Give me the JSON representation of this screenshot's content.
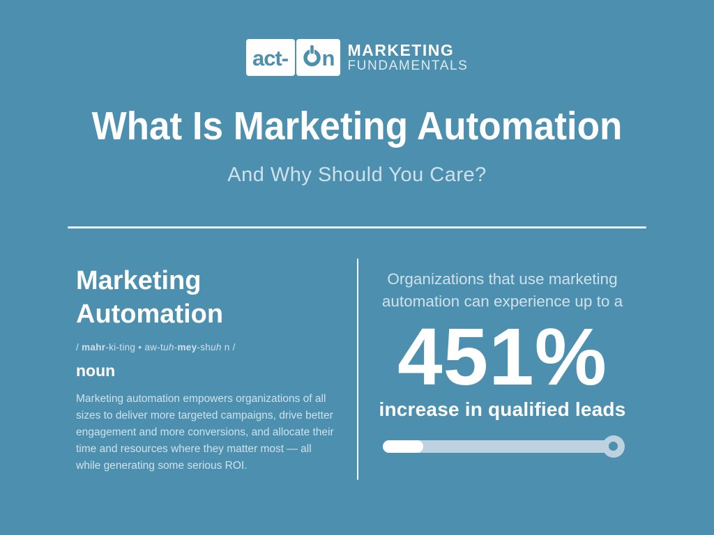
{
  "colors": {
    "background": "#4C8FAE",
    "white": "#FFFFFF",
    "pale_text": "#CFE2EC",
    "slider_track": "#BDD2DE"
  },
  "header": {
    "logo_text_left": "act-",
    "logo_text_right": "n",
    "power_icon": "power-icon",
    "brand_top": "MARKETING",
    "brand_bottom": "FUNDAMENTALS"
  },
  "hero": {
    "title": "What Is Marketing Automation",
    "subtitle": "And Why Should You Care?"
  },
  "definition": {
    "term_line1": "Marketing",
    "term_line2": "Automation",
    "pronunciation": {
      "p1": "/ ",
      "p2": "mahr",
      "p3": "-ki-ting • aw-t",
      "p4": "uh",
      "p5": "-",
      "p6": "mey",
      "p7": "-sh",
      "p8": "uh",
      "p9": " n /"
    },
    "part_of_speech": "noun",
    "body": "Marketing automation empowers organizations of all sizes to deliver more targeted campaigns, drive better engagement and more conversions, and allocate their time and resources where they matter most — all while generating some serious ROI."
  },
  "stat": {
    "intro": "Organizations that use marketing automation can experience up to a",
    "value": "451%",
    "caption": "increase in qualified leads",
    "slider_fill_percent": 17
  }
}
